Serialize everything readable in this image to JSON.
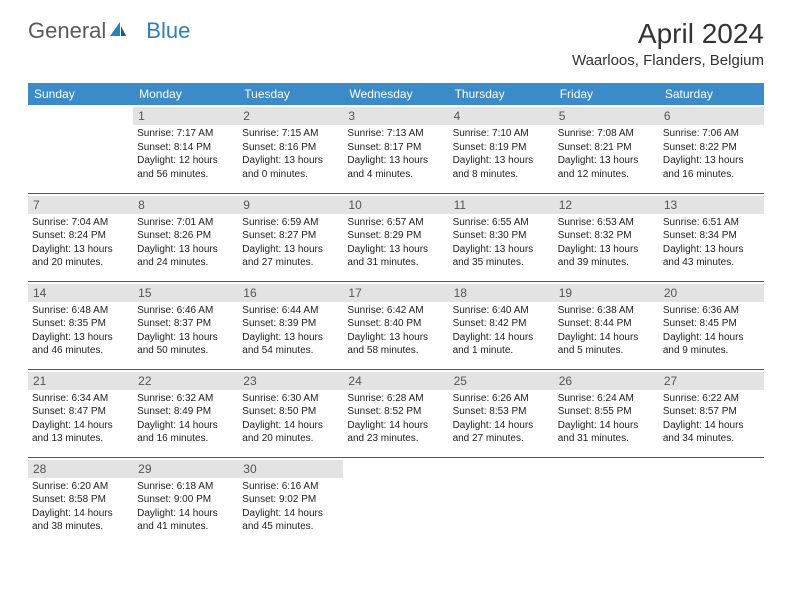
{
  "brand": {
    "part1": "General",
    "part2": "Blue"
  },
  "title": "April 2024",
  "location": "Waarloos, Flanders, Belgium",
  "colors": {
    "header_bg": "#3b8bc9",
    "header_text": "#ffffff",
    "daynum_bg": "#e3e3e3",
    "daynum_text": "#555555",
    "border": "#2b5f8a",
    "logo_gray": "#5a5a5a",
    "logo_blue": "#2b7fbc"
  },
  "weekdays": [
    "Sunday",
    "Monday",
    "Tuesday",
    "Wednesday",
    "Thursday",
    "Friday",
    "Saturday"
  ],
  "weeks": [
    [
      null,
      {
        "n": "1",
        "sr": "Sunrise: 7:17 AM",
        "ss": "Sunset: 8:14 PM",
        "d1": "Daylight: 12 hours",
        "d2": "and 56 minutes."
      },
      {
        "n": "2",
        "sr": "Sunrise: 7:15 AM",
        "ss": "Sunset: 8:16 PM",
        "d1": "Daylight: 13 hours",
        "d2": "and 0 minutes."
      },
      {
        "n": "3",
        "sr": "Sunrise: 7:13 AM",
        "ss": "Sunset: 8:17 PM",
        "d1": "Daylight: 13 hours",
        "d2": "and 4 minutes."
      },
      {
        "n": "4",
        "sr": "Sunrise: 7:10 AM",
        "ss": "Sunset: 8:19 PM",
        "d1": "Daylight: 13 hours",
        "d2": "and 8 minutes."
      },
      {
        "n": "5",
        "sr": "Sunrise: 7:08 AM",
        "ss": "Sunset: 8:21 PM",
        "d1": "Daylight: 13 hours",
        "d2": "and 12 minutes."
      },
      {
        "n": "6",
        "sr": "Sunrise: 7:06 AM",
        "ss": "Sunset: 8:22 PM",
        "d1": "Daylight: 13 hours",
        "d2": "and 16 minutes."
      }
    ],
    [
      {
        "n": "7",
        "sr": "Sunrise: 7:04 AM",
        "ss": "Sunset: 8:24 PM",
        "d1": "Daylight: 13 hours",
        "d2": "and 20 minutes."
      },
      {
        "n": "8",
        "sr": "Sunrise: 7:01 AM",
        "ss": "Sunset: 8:26 PM",
        "d1": "Daylight: 13 hours",
        "d2": "and 24 minutes."
      },
      {
        "n": "9",
        "sr": "Sunrise: 6:59 AM",
        "ss": "Sunset: 8:27 PM",
        "d1": "Daylight: 13 hours",
        "d2": "and 27 minutes."
      },
      {
        "n": "10",
        "sr": "Sunrise: 6:57 AM",
        "ss": "Sunset: 8:29 PM",
        "d1": "Daylight: 13 hours",
        "d2": "and 31 minutes."
      },
      {
        "n": "11",
        "sr": "Sunrise: 6:55 AM",
        "ss": "Sunset: 8:30 PM",
        "d1": "Daylight: 13 hours",
        "d2": "and 35 minutes."
      },
      {
        "n": "12",
        "sr": "Sunrise: 6:53 AM",
        "ss": "Sunset: 8:32 PM",
        "d1": "Daylight: 13 hours",
        "d2": "and 39 minutes."
      },
      {
        "n": "13",
        "sr": "Sunrise: 6:51 AM",
        "ss": "Sunset: 8:34 PM",
        "d1": "Daylight: 13 hours",
        "d2": "and 43 minutes."
      }
    ],
    [
      {
        "n": "14",
        "sr": "Sunrise: 6:48 AM",
        "ss": "Sunset: 8:35 PM",
        "d1": "Daylight: 13 hours",
        "d2": "and 46 minutes."
      },
      {
        "n": "15",
        "sr": "Sunrise: 6:46 AM",
        "ss": "Sunset: 8:37 PM",
        "d1": "Daylight: 13 hours",
        "d2": "and 50 minutes."
      },
      {
        "n": "16",
        "sr": "Sunrise: 6:44 AM",
        "ss": "Sunset: 8:39 PM",
        "d1": "Daylight: 13 hours",
        "d2": "and 54 minutes."
      },
      {
        "n": "17",
        "sr": "Sunrise: 6:42 AM",
        "ss": "Sunset: 8:40 PM",
        "d1": "Daylight: 13 hours",
        "d2": "and 58 minutes."
      },
      {
        "n": "18",
        "sr": "Sunrise: 6:40 AM",
        "ss": "Sunset: 8:42 PM",
        "d1": "Daylight: 14 hours",
        "d2": "and 1 minute."
      },
      {
        "n": "19",
        "sr": "Sunrise: 6:38 AM",
        "ss": "Sunset: 8:44 PM",
        "d1": "Daylight: 14 hours",
        "d2": "and 5 minutes."
      },
      {
        "n": "20",
        "sr": "Sunrise: 6:36 AM",
        "ss": "Sunset: 8:45 PM",
        "d1": "Daylight: 14 hours",
        "d2": "and 9 minutes."
      }
    ],
    [
      {
        "n": "21",
        "sr": "Sunrise: 6:34 AM",
        "ss": "Sunset: 8:47 PM",
        "d1": "Daylight: 14 hours",
        "d2": "and 13 minutes."
      },
      {
        "n": "22",
        "sr": "Sunrise: 6:32 AM",
        "ss": "Sunset: 8:49 PM",
        "d1": "Daylight: 14 hours",
        "d2": "and 16 minutes."
      },
      {
        "n": "23",
        "sr": "Sunrise: 6:30 AM",
        "ss": "Sunset: 8:50 PM",
        "d1": "Daylight: 14 hours",
        "d2": "and 20 minutes."
      },
      {
        "n": "24",
        "sr": "Sunrise: 6:28 AM",
        "ss": "Sunset: 8:52 PM",
        "d1": "Daylight: 14 hours",
        "d2": "and 23 minutes."
      },
      {
        "n": "25",
        "sr": "Sunrise: 6:26 AM",
        "ss": "Sunset: 8:53 PM",
        "d1": "Daylight: 14 hours",
        "d2": "and 27 minutes."
      },
      {
        "n": "26",
        "sr": "Sunrise: 6:24 AM",
        "ss": "Sunset: 8:55 PM",
        "d1": "Daylight: 14 hours",
        "d2": "and 31 minutes."
      },
      {
        "n": "27",
        "sr": "Sunrise: 6:22 AM",
        "ss": "Sunset: 8:57 PM",
        "d1": "Daylight: 14 hours",
        "d2": "and 34 minutes."
      }
    ],
    [
      {
        "n": "28",
        "sr": "Sunrise: 6:20 AM",
        "ss": "Sunset: 8:58 PM",
        "d1": "Daylight: 14 hours",
        "d2": "and 38 minutes."
      },
      {
        "n": "29",
        "sr": "Sunrise: 6:18 AM",
        "ss": "Sunset: 9:00 PM",
        "d1": "Daylight: 14 hours",
        "d2": "and 41 minutes."
      },
      {
        "n": "30",
        "sr": "Sunrise: 6:16 AM",
        "ss": "Sunset: 9:02 PM",
        "d1": "Daylight: 14 hours",
        "d2": "and 45 minutes."
      },
      null,
      null,
      null,
      null
    ]
  ]
}
